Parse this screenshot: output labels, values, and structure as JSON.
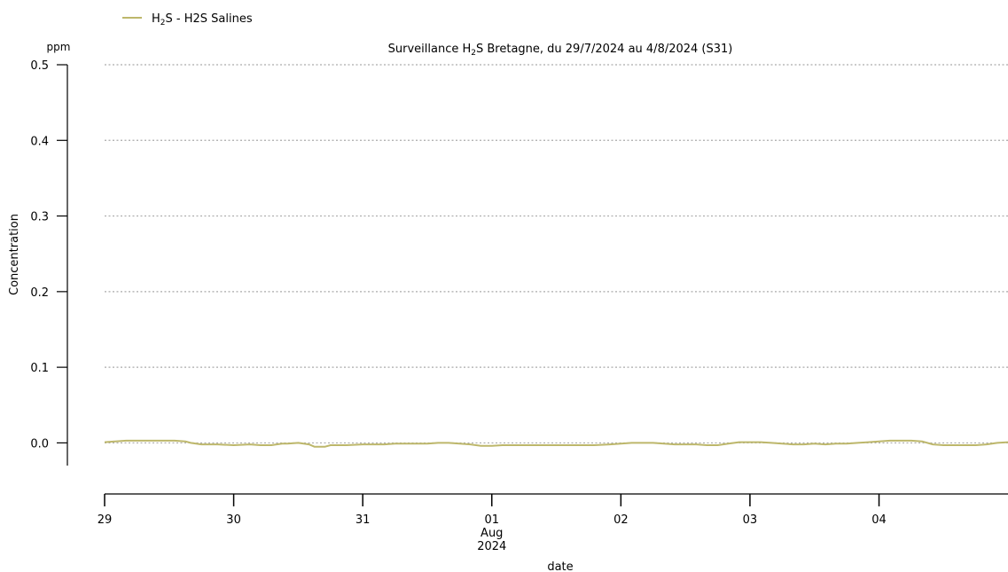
{
  "legend": {
    "sub": "2",
    "entries": [
      {
        "prefix": "H",
        "suffix": "S - H2S Salines",
        "color": "#bdb76b"
      }
    ]
  },
  "chart_data": {
    "type": "line",
    "title_prefix": "Surveillance H",
    "title_sub": "2",
    "title_suffix": "S Bretagne, du 29/7/2024 au 4/8/2024 (S31)",
    "ylabel": "Concentration",
    "yunit": "ppm",
    "xlabel": "date",
    "ylim": [
      -0.03,
      0.5
    ],
    "yticks": [
      0.0,
      0.1,
      0.2,
      0.3,
      0.4,
      0.5
    ],
    "ytick_labels": [
      "0.0",
      "0.1",
      "0.2",
      "0.3",
      "0.4",
      "0.5"
    ],
    "xlim": [
      "2024-07-29 00:00",
      "2024-08-04 23:59"
    ],
    "xticks": [
      {
        "x": "2024-07-29",
        "label": "29"
      },
      {
        "x": "2024-07-30",
        "label": "30"
      },
      {
        "x": "2024-07-31",
        "label": "31"
      },
      {
        "x": "2024-08-01",
        "label": "01",
        "sublabel1": "Aug",
        "sublabel2": "2024"
      },
      {
        "x": "2024-08-02",
        "label": "02"
      },
      {
        "x": "2024-08-03",
        "label": "03"
      },
      {
        "x": "2024-08-04",
        "label": "04"
      }
    ],
    "grid": "y-dotted",
    "legend_position": "top-left",
    "series": [
      {
        "name": "H2S - H2S Salines",
        "color": "#bdb76b",
        "points": [
          [
            "2024-07-29 00:00",
            0.001
          ],
          [
            "2024-07-29 02:00",
            0.002
          ],
          [
            "2024-07-29 04:00",
            0.003
          ],
          [
            "2024-07-29 06:00",
            0.003
          ],
          [
            "2024-07-29 08:00",
            0.003
          ],
          [
            "2024-07-29 10:00",
            0.003
          ],
          [
            "2024-07-29 12:00",
            0.003
          ],
          [
            "2024-07-29 13:00",
            0.003
          ],
          [
            "2024-07-29 15:00",
            0.002
          ],
          [
            "2024-07-29 16:00",
            0.0
          ],
          [
            "2024-07-29 18:00",
            -0.002
          ],
          [
            "2024-07-29 21:00",
            -0.002
          ],
          [
            "2024-07-30 00:00",
            -0.003
          ],
          [
            "2024-07-30 03:00",
            -0.002
          ],
          [
            "2024-07-30 05:00",
            -0.003
          ],
          [
            "2024-07-30 07:00",
            -0.003
          ],
          [
            "2024-07-30 08:00",
            -0.002
          ],
          [
            "2024-07-30 09:00",
            -0.001
          ],
          [
            "2024-07-30 10:00",
            -0.001
          ],
          [
            "2024-07-30 12:00",
            0.0
          ],
          [
            "2024-07-30 14:00",
            -0.002
          ],
          [
            "2024-07-30 15:00",
            -0.005
          ],
          [
            "2024-07-30 17:00",
            -0.005
          ],
          [
            "2024-07-30 18:00",
            -0.003
          ],
          [
            "2024-07-30 21:00",
            -0.003
          ],
          [
            "2024-07-30 24:00",
            -0.002
          ],
          [
            "2024-07-31 02:00",
            -0.002
          ],
          [
            "2024-07-31 04:00",
            -0.002
          ],
          [
            "2024-07-31 06:00",
            -0.001
          ],
          [
            "2024-07-31 09:00",
            -0.001
          ],
          [
            "2024-07-31 12:00",
            -0.001
          ],
          [
            "2024-07-31 14:00",
            0.0
          ],
          [
            "2024-07-31 16:00",
            0.0
          ],
          [
            "2024-07-31 18:00",
            -0.001
          ],
          [
            "2024-07-31 20:00",
            -0.002
          ],
          [
            "2024-07-31 22:00",
            -0.004
          ],
          [
            "2024-08-01 00:00",
            -0.004
          ],
          [
            "2024-08-01 02:00",
            -0.003
          ],
          [
            "2024-08-01 04:00",
            -0.003
          ],
          [
            "2024-08-01 07:00",
            -0.003
          ],
          [
            "2024-08-01 10:00",
            -0.003
          ],
          [
            "2024-08-01 13:00",
            -0.003
          ],
          [
            "2024-08-01 16:00",
            -0.003
          ],
          [
            "2024-08-01 19:00",
            -0.003
          ],
          [
            "2024-08-01 22:00",
            -0.002
          ],
          [
            "2024-08-02 00:00",
            -0.001
          ],
          [
            "2024-08-02 02:00",
            0.0
          ],
          [
            "2024-08-02 04:00",
            0.0
          ],
          [
            "2024-08-02 06:00",
            0.0
          ],
          [
            "2024-08-02 08:00",
            -0.001
          ],
          [
            "2024-08-02 10:00",
            -0.002
          ],
          [
            "2024-08-02 12:00",
            -0.002
          ],
          [
            "2024-08-02 14:00",
            -0.002
          ],
          [
            "2024-08-02 16:00",
            -0.003
          ],
          [
            "2024-08-02 18:00",
            -0.003
          ],
          [
            "2024-08-02 20:00",
            -0.001
          ],
          [
            "2024-08-02 22:00",
            0.001
          ],
          [
            "2024-08-03 00:00",
            0.001
          ],
          [
            "2024-08-03 02:00",
            0.001
          ],
          [
            "2024-08-03 04:00",
            0.0
          ],
          [
            "2024-08-03 06:00",
            -0.001
          ],
          [
            "2024-08-03 08:00",
            -0.002
          ],
          [
            "2024-08-03 10:00",
            -0.002
          ],
          [
            "2024-08-03 12:00",
            -0.001
          ],
          [
            "2024-08-03 14:00",
            -0.002
          ],
          [
            "2024-08-03 16:00",
            -0.001
          ],
          [
            "2024-08-03 18:00",
            -0.001
          ],
          [
            "2024-08-03 20:00",
            0.0
          ],
          [
            "2024-08-03 22:00",
            0.001
          ],
          [
            "2024-08-04 00:00",
            0.002
          ],
          [
            "2024-08-04 02:00",
            0.003
          ],
          [
            "2024-08-04 04:00",
            0.003
          ],
          [
            "2024-08-04 06:00",
            0.003
          ],
          [
            "2024-08-04 08:00",
            0.002
          ],
          [
            "2024-08-04 10:00",
            -0.002
          ],
          [
            "2024-08-04 12:00",
            -0.003
          ],
          [
            "2024-08-04 14:00",
            -0.003
          ],
          [
            "2024-08-04 16:00",
            -0.003
          ],
          [
            "2024-08-04 18:00",
            -0.003
          ],
          [
            "2024-08-04 20:00",
            -0.002
          ],
          [
            "2024-08-04 22:00",
            0.0
          ],
          [
            "2024-08-04 23:59",
            0.001
          ]
        ]
      }
    ]
  }
}
